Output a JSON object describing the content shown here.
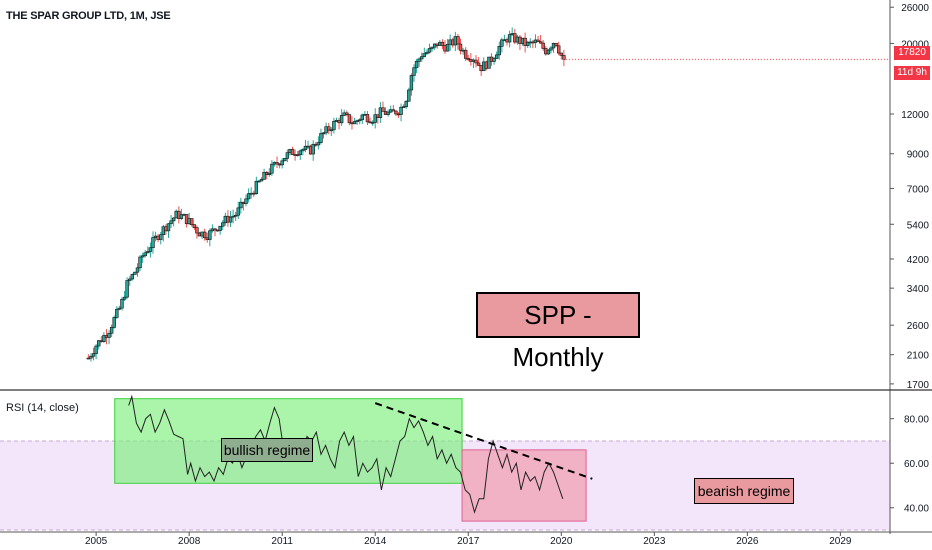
{
  "header": {
    "title": "THE SPAR GROUP LTD, 1M, JSE"
  },
  "price_badges": {
    "last": "17820",
    "countdown": "11d 9h"
  },
  "annotations": {
    "title": "SPP - Monthly",
    "bullish": "bullish regime",
    "bearish": "bearish regime"
  },
  "colors": {
    "up": "#26a69a",
    "down": "#ef5350",
    "bull_zone": "#7cf07c",
    "bear_zone": "#f0a0b4",
    "rsi_band": "#f3e6fb",
    "badge": "#f23645"
  },
  "chart_data": [
    {
      "type": "candlestick",
      "title": "THE SPAR GROUP LTD, 1M, JSE",
      "scale": "log",
      "y_ticks": [
        1700,
        2100,
        2600,
        3400,
        4200,
        5400,
        7000,
        9000,
        12000,
        20000,
        26000
      ],
      "ylim": [
        1650,
        27000
      ],
      "x_ticks": [
        2005,
        2008,
        2011,
        2014,
        2017,
        2020,
        2023,
        2026,
        2029
      ],
      "xlim": [
        2001.9,
        2030.6
      ],
      "grid": false,
      "last_price": 17820,
      "close_path": [
        [
          2004.75,
          2050
        ],
        [
          2005.0,
          2250
        ],
        [
          2005.4,
          2500
        ],
        [
          2005.8,
          3000
        ],
        [
          2006.0,
          3500
        ],
        [
          2006.3,
          3900
        ],
        [
          2006.5,
          4300
        ],
        [
          2006.8,
          4700
        ],
        [
          2007.0,
          5000
        ],
        [
          2007.3,
          5400
        ],
        [
          2007.6,
          5800
        ],
        [
          2007.8,
          5700
        ],
        [
          2008.0,
          5500
        ],
        [
          2008.3,
          5100
        ],
        [
          2008.6,
          5000
        ],
        [
          2008.9,
          5300
        ],
        [
          2009.2,
          5600
        ],
        [
          2009.5,
          5800
        ],
        [
          2009.8,
          6400
        ],
        [
          2010.2,
          7200
        ],
        [
          2010.6,
          8000
        ],
        [
          2011.0,
          8700
        ],
        [
          2011.3,
          9100
        ],
        [
          2011.6,
          9300
        ],
        [
          2011.9,
          9200
        ],
        [
          2012.2,
          10100
        ],
        [
          2012.5,
          10800
        ],
        [
          2012.8,
          11500
        ],
        [
          2013.0,
          11800
        ],
        [
          2013.3,
          11200
        ],
        [
          2013.6,
          11900
        ],
        [
          2013.9,
          11600
        ],
        [
          2014.2,
          12200
        ],
        [
          2014.5,
          12000
        ],
        [
          2014.8,
          12400
        ],
        [
          2015.0,
          13500
        ],
        [
          2015.2,
          16500
        ],
        [
          2015.5,
          18500
        ],
        [
          2015.8,
          19000
        ],
        [
          2016.0,
          20000
        ],
        [
          2016.3,
          19500
        ],
        [
          2016.6,
          20500
        ],
        [
          2016.9,
          18500
        ],
        [
          2017.2,
          18000
        ],
        [
          2017.4,
          16800
        ],
        [
          2017.7,
          17600
        ],
        [
          2018.0,
          19500
        ],
        [
          2018.3,
          21000
        ],
        [
          2018.6,
          20500
        ],
        [
          2018.9,
          19800
        ],
        [
          2019.2,
          20200
        ],
        [
          2019.5,
          19000
        ],
        [
          2019.8,
          20500
        ],
        [
          2020.05,
          17820
        ]
      ]
    },
    {
      "type": "line",
      "title": "RSI (14, close)",
      "y_ticks": [
        40,
        60,
        80
      ],
      "ylim": [
        30,
        92
      ],
      "band": [
        30,
        70
      ],
      "x": [
        2006.05,
        2006.15,
        2006.3,
        2006.45,
        2006.6,
        2006.75,
        2006.9,
        2007.05,
        2007.2,
        2007.35,
        2007.5,
        2007.65,
        2007.8,
        2007.95,
        2008.05,
        2008.2,
        2008.35,
        2008.5,
        2008.65,
        2008.8,
        2008.95,
        2009.1,
        2009.25,
        2009.4,
        2009.55,
        2009.7,
        2009.85,
        2010.0,
        2010.15,
        2010.3,
        2010.45,
        2010.6,
        2010.75,
        2010.9,
        2011.05,
        2011.2,
        2011.35,
        2011.5,
        2011.65,
        2011.8,
        2011.95,
        2012.1,
        2012.25,
        2012.4,
        2012.55,
        2012.7,
        2012.85,
        2013.0,
        2013.15,
        2013.3,
        2013.45,
        2013.6,
        2013.75,
        2013.9,
        2014.05,
        2014.2,
        2014.35,
        2014.5,
        2014.65,
        2014.8,
        2014.95,
        2015.1,
        2015.25,
        2015.4,
        2015.55,
        2015.7,
        2015.85,
        2016.0,
        2016.15,
        2016.3,
        2016.45,
        2016.6,
        2016.75,
        2016.9,
        2017.05,
        2017.2,
        2017.35,
        2017.5,
        2017.65,
        2017.8,
        2017.95,
        2018.1,
        2018.25,
        2018.4,
        2018.55,
        2018.7,
        2018.85,
        2019.0,
        2019.15,
        2019.3,
        2019.45,
        2019.6,
        2019.75,
        2019.9,
        2020.05
      ],
      "values": [
        86,
        90,
        78,
        74,
        80,
        82,
        74,
        78,
        84,
        79,
        73,
        72,
        71,
        55,
        60,
        52,
        58,
        54,
        56,
        52,
        58,
        55,
        62,
        60,
        65,
        58,
        63,
        68,
        72,
        75,
        70,
        78,
        85,
        80,
        66,
        68,
        62,
        66,
        64,
        72,
        70,
        74,
        64,
        68,
        62,
        58,
        70,
        74,
        68,
        72,
        54,
        60,
        56,
        58,
        62,
        48,
        58,
        54,
        62,
        70,
        72,
        80,
        76,
        79,
        74,
        68,
        72,
        62,
        66,
        60,
        64,
        58,
        56,
        48,
        46,
        38,
        44,
        44,
        62,
        70,
        64,
        58,
        64,
        56,
        60,
        48,
        56,
        52,
        54,
        48,
        56,
        60,
        56,
        50,
        44
      ]
    }
  ]
}
